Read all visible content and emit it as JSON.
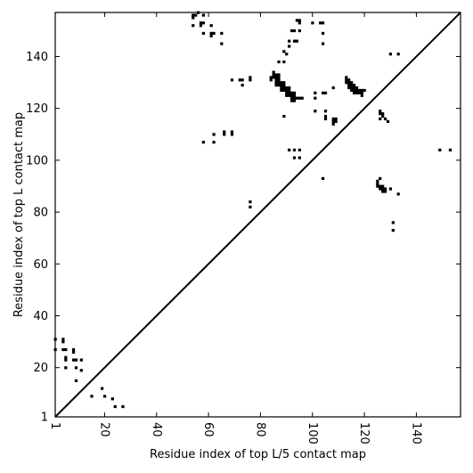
{
  "chart_data": {
    "type": "scatter",
    "title": "",
    "xlabel": "Residue index of top L/5 contact map",
    "ylabel": "Residue index of top L contact map",
    "xlim": [
      1,
      157
    ],
    "ylim": [
      1,
      157
    ],
    "xticks": [
      1,
      20,
      40,
      60,
      80,
      100,
      120,
      140
    ],
    "yticks": [
      1,
      20,
      40,
      60,
      80,
      100,
      120,
      140
    ],
    "diagonal_line": true,
    "grid": false,
    "series": [
      {
        "region": "lower-right (top L/5)",
        "points": [
          [
            1,
            31
          ],
          [
            1,
            27
          ],
          [
            4,
            31
          ],
          [
            4,
            30
          ],
          [
            4,
            27
          ],
          [
            5,
            27
          ],
          [
            5,
            24
          ],
          [
            5,
            23
          ],
          [
            5,
            20
          ],
          [
            8,
            27
          ],
          [
            8,
            26
          ],
          [
            8,
            23
          ],
          [
            9,
            23
          ],
          [
            9,
            20
          ],
          [
            9,
            15
          ],
          [
            11,
            23
          ],
          [
            11,
            19
          ],
          [
            15,
            9
          ],
          [
            19,
            12
          ],
          [
            20,
            9
          ],
          [
            23,
            8
          ],
          [
            24,
            5
          ],
          [
            27,
            5
          ],
          [
            125,
            92
          ],
          [
            125,
            91
          ],
          [
            125,
            90
          ],
          [
            126,
            93
          ],
          [
            126,
            90
          ],
          [
            126,
            89
          ],
          [
            127,
            90
          ],
          [
            127,
            89
          ],
          [
            127,
            88
          ],
          [
            128,
            89
          ],
          [
            128,
            88
          ],
          [
            130,
            89
          ],
          [
            133,
            87
          ],
          [
            131,
            76
          ],
          [
            131,
            73
          ],
          [
            149,
            104
          ],
          [
            153,
            104
          ]
        ]
      },
      {
        "region": "upper-left (top L)",
        "points": [
          [
            54,
            156
          ],
          [
            54,
            155
          ],
          [
            55,
            156
          ],
          [
            56,
            157
          ],
          [
            54,
            152
          ],
          [
            57,
            153
          ],
          [
            57,
            152
          ],
          [
            58,
            156
          ],
          [
            58,
            153
          ],
          [
            58,
            149
          ],
          [
            61,
            152
          ],
          [
            61,
            149
          ],
          [
            61,
            148
          ],
          [
            62,
            149
          ],
          [
            65,
            149
          ],
          [
            65,
            145
          ],
          [
            58,
            107
          ],
          [
            62,
            110
          ],
          [
            62,
            107
          ],
          [
            66,
            111
          ],
          [
            66,
            110
          ],
          [
            69,
            111
          ],
          [
            69,
            110
          ],
          [
            69,
            131
          ],
          [
            72,
            131
          ],
          [
            73,
            131
          ],
          [
            73,
            129
          ],
          [
            76,
            132
          ],
          [
            76,
            131
          ],
          [
            76,
            84
          ],
          [
            76,
            82
          ],
          [
            84,
            132
          ],
          [
            84,
            131
          ],
          [
            85,
            134
          ],
          [
            85,
            133
          ],
          [
            85,
            132
          ],
          [
            86,
            133
          ],
          [
            86,
            132
          ],
          [
            86,
            131
          ],
          [
            86,
            130
          ],
          [
            86,
            129
          ],
          [
            87,
            133
          ],
          [
            87,
            132
          ],
          [
            87,
            131
          ],
          [
            87,
            130
          ],
          [
            87,
            129
          ],
          [
            88,
            130
          ],
          [
            88,
            129
          ],
          [
            88,
            128
          ],
          [
            88,
            127
          ],
          [
            89,
            130
          ],
          [
            89,
            129
          ],
          [
            89,
            128
          ],
          [
            89,
            127
          ],
          [
            90,
            128
          ],
          [
            90,
            127
          ],
          [
            90,
            126
          ],
          [
            90,
            125
          ],
          [
            91,
            128
          ],
          [
            91,
            127
          ],
          [
            91,
            126
          ],
          [
            91,
            125
          ],
          [
            92,
            126
          ],
          [
            92,
            125
          ],
          [
            92,
            124
          ],
          [
            92,
            123
          ],
          [
            93,
            126
          ],
          [
            93,
            125
          ],
          [
            93,
            124
          ],
          [
            93,
            123
          ],
          [
            94,
            124
          ],
          [
            95,
            124
          ],
          [
            96,
            124
          ],
          [
            87,
            138
          ],
          [
            89,
            138
          ],
          [
            89,
            142
          ],
          [
            90,
            141
          ],
          [
            91,
            146
          ],
          [
            91,
            144
          ],
          [
            92,
            150
          ],
          [
            93,
            150
          ],
          [
            93,
            146
          ],
          [
            94,
            146
          ],
          [
            94,
            154
          ],
          [
            95,
            154
          ],
          [
            95,
            153
          ],
          [
            95,
            150
          ],
          [
            100,
            153
          ],
          [
            103,
            153
          ],
          [
            104,
            153
          ],
          [
            104,
            149
          ],
          [
            104,
            145
          ],
          [
            101,
            126
          ],
          [
            101,
            124
          ],
          [
            104,
            126
          ],
          [
            105,
            126
          ],
          [
            108,
            128
          ],
          [
            89,
            117
          ],
          [
            101,
            119
          ],
          [
            105,
            119
          ],
          [
            105,
            117
          ],
          [
            105,
            116
          ],
          [
            108,
            116
          ],
          [
            108,
            115
          ],
          [
            108,
            114
          ],
          [
            109,
            116
          ],
          [
            109,
            115
          ],
          [
            91,
            104
          ],
          [
            93,
            104
          ],
          [
            95,
            104
          ],
          [
            93,
            101
          ],
          [
            95,
            101
          ],
          [
            104,
            93
          ],
          [
            113,
            132
          ],
          [
            113,
            131
          ],
          [
            113,
            130
          ],
          [
            114,
            131
          ],
          [
            114,
            130
          ],
          [
            114,
            129
          ],
          [
            114,
            128
          ],
          [
            115,
            130
          ],
          [
            115,
            129
          ],
          [
            115,
            128
          ],
          [
            115,
            127
          ],
          [
            116,
            129
          ],
          [
            116,
            128
          ],
          [
            116,
            127
          ],
          [
            116,
            126
          ],
          [
            117,
            128
          ],
          [
            117,
            127
          ],
          [
            117,
            126
          ],
          [
            118,
            127
          ],
          [
            118,
            126
          ],
          [
            119,
            127
          ],
          [
            119,
            126
          ],
          [
            119,
            125
          ],
          [
            120,
            127
          ],
          [
            126,
            119
          ],
          [
            126,
            118
          ],
          [
            126,
            116
          ],
          [
            127,
            118
          ],
          [
            127,
            117
          ],
          [
            128,
            116
          ],
          [
            129,
            115
          ],
          [
            130,
            141
          ],
          [
            133,
            141
          ]
        ]
      }
    ]
  }
}
